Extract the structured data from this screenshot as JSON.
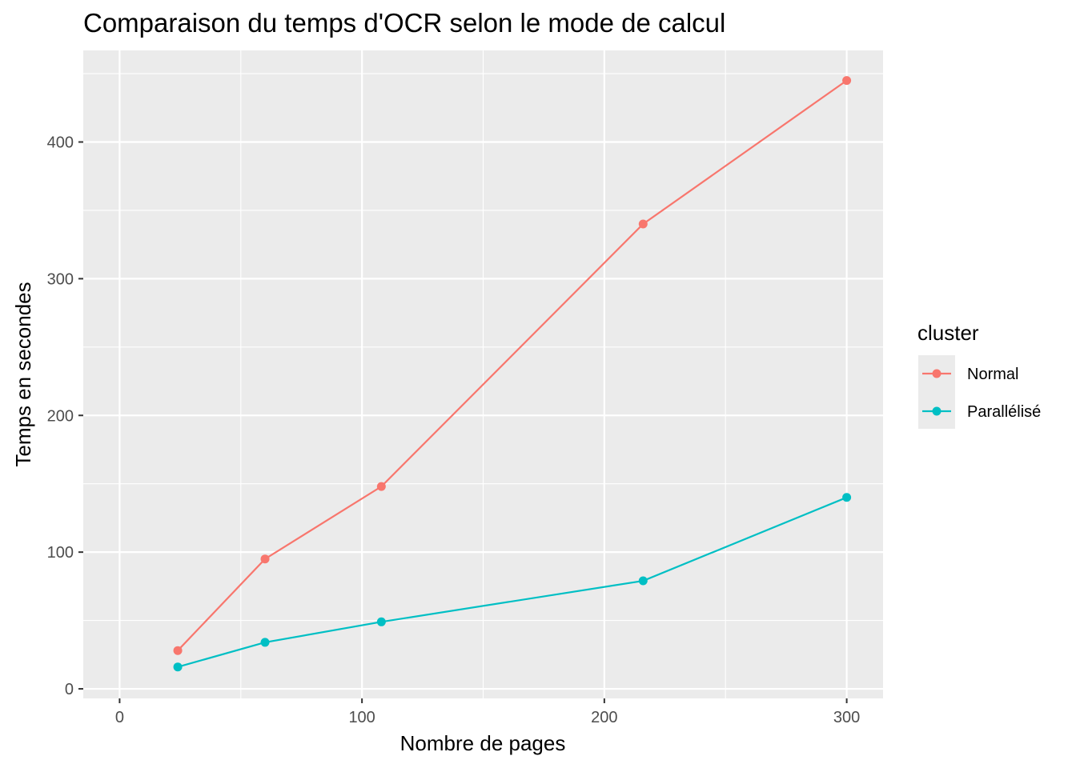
{
  "chart_data": {
    "type": "line",
    "title": "Comparaison du temps d'OCR selon le mode de calcul",
    "xlabel": "Nombre de pages",
    "ylabel": "Temps en secondes",
    "xlim": [
      -15,
      315
    ],
    "ylim": [
      -7,
      467
    ],
    "x_ticks": [
      0,
      100,
      200,
      300
    ],
    "x_minor": [
      50,
      150,
      250
    ],
    "y_ticks": [
      0,
      100,
      200,
      300,
      400
    ],
    "y_minor": [
      50,
      150,
      250,
      350,
      450
    ],
    "x": [
      24,
      60,
      108,
      216,
      300
    ],
    "series": [
      {
        "name": "Normal",
        "color": "#F8766D",
        "values": [
          28,
          95,
          148,
          340,
          445
        ]
      },
      {
        "name": "Parallélisé",
        "color": "#00BFC4",
        "values": [
          16,
          34,
          49,
          79,
          140
        ]
      }
    ],
    "legend": {
      "title": "cluster",
      "position": "right"
    },
    "panel_background": "#EBEBEB",
    "grid": true
  }
}
